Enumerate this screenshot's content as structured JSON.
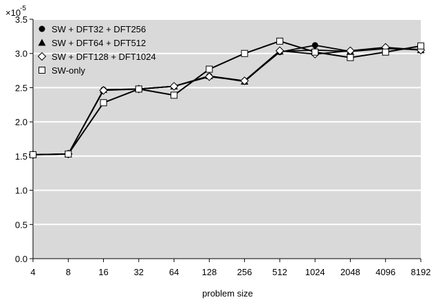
{
  "chart_data": {
    "type": "line",
    "title": "",
    "xlabel": "problem size",
    "ylabel": "",
    "categories": [
      "4",
      "8",
      "16",
      "32",
      "64",
      "128",
      "256",
      "512",
      "1024",
      "2048",
      "4096",
      "8192"
    ],
    "ylim": [
      0.0,
      3.5
    ],
    "yticks": [
      "0.0",
      "0.5",
      "1.0",
      "1.5",
      "2.0",
      "2.5",
      "3.0",
      "3.5"
    ],
    "y_exponent": {
      "base": "×10",
      "power": "-5"
    },
    "grid": "horizontal",
    "legend_position": "top-left",
    "plot_background": "#d9d9d9",
    "series": [
      {
        "name": "SW + DFT32 + DFT256",
        "marker": "filled-circle",
        "values": [
          1.52,
          1.53,
          2.47,
          2.48,
          2.52,
          2.67,
          2.6,
          3.02,
          3.12,
          3.03,
          3.07,
          3.06
        ]
      },
      {
        "name": "SW + DFT64 + DFT512",
        "marker": "filled-triangle",
        "values": [
          1.52,
          1.53,
          2.47,
          2.48,
          2.52,
          2.67,
          2.59,
          3.03,
          3.05,
          3.03,
          3.08,
          3.05
        ]
      },
      {
        "name": "SW + DFT128 + DFT1024",
        "marker": "open-diamond",
        "values": [
          1.52,
          1.53,
          2.46,
          2.48,
          2.52,
          2.66,
          2.6,
          3.04,
          2.99,
          3.04,
          3.09,
          3.05
        ]
      },
      {
        "name": "SW-only",
        "marker": "open-square",
        "values": [
          1.52,
          1.53,
          2.28,
          2.48,
          2.39,
          2.77,
          3.0,
          3.18,
          3.02,
          2.94,
          3.02,
          3.11
        ]
      }
    ]
  }
}
